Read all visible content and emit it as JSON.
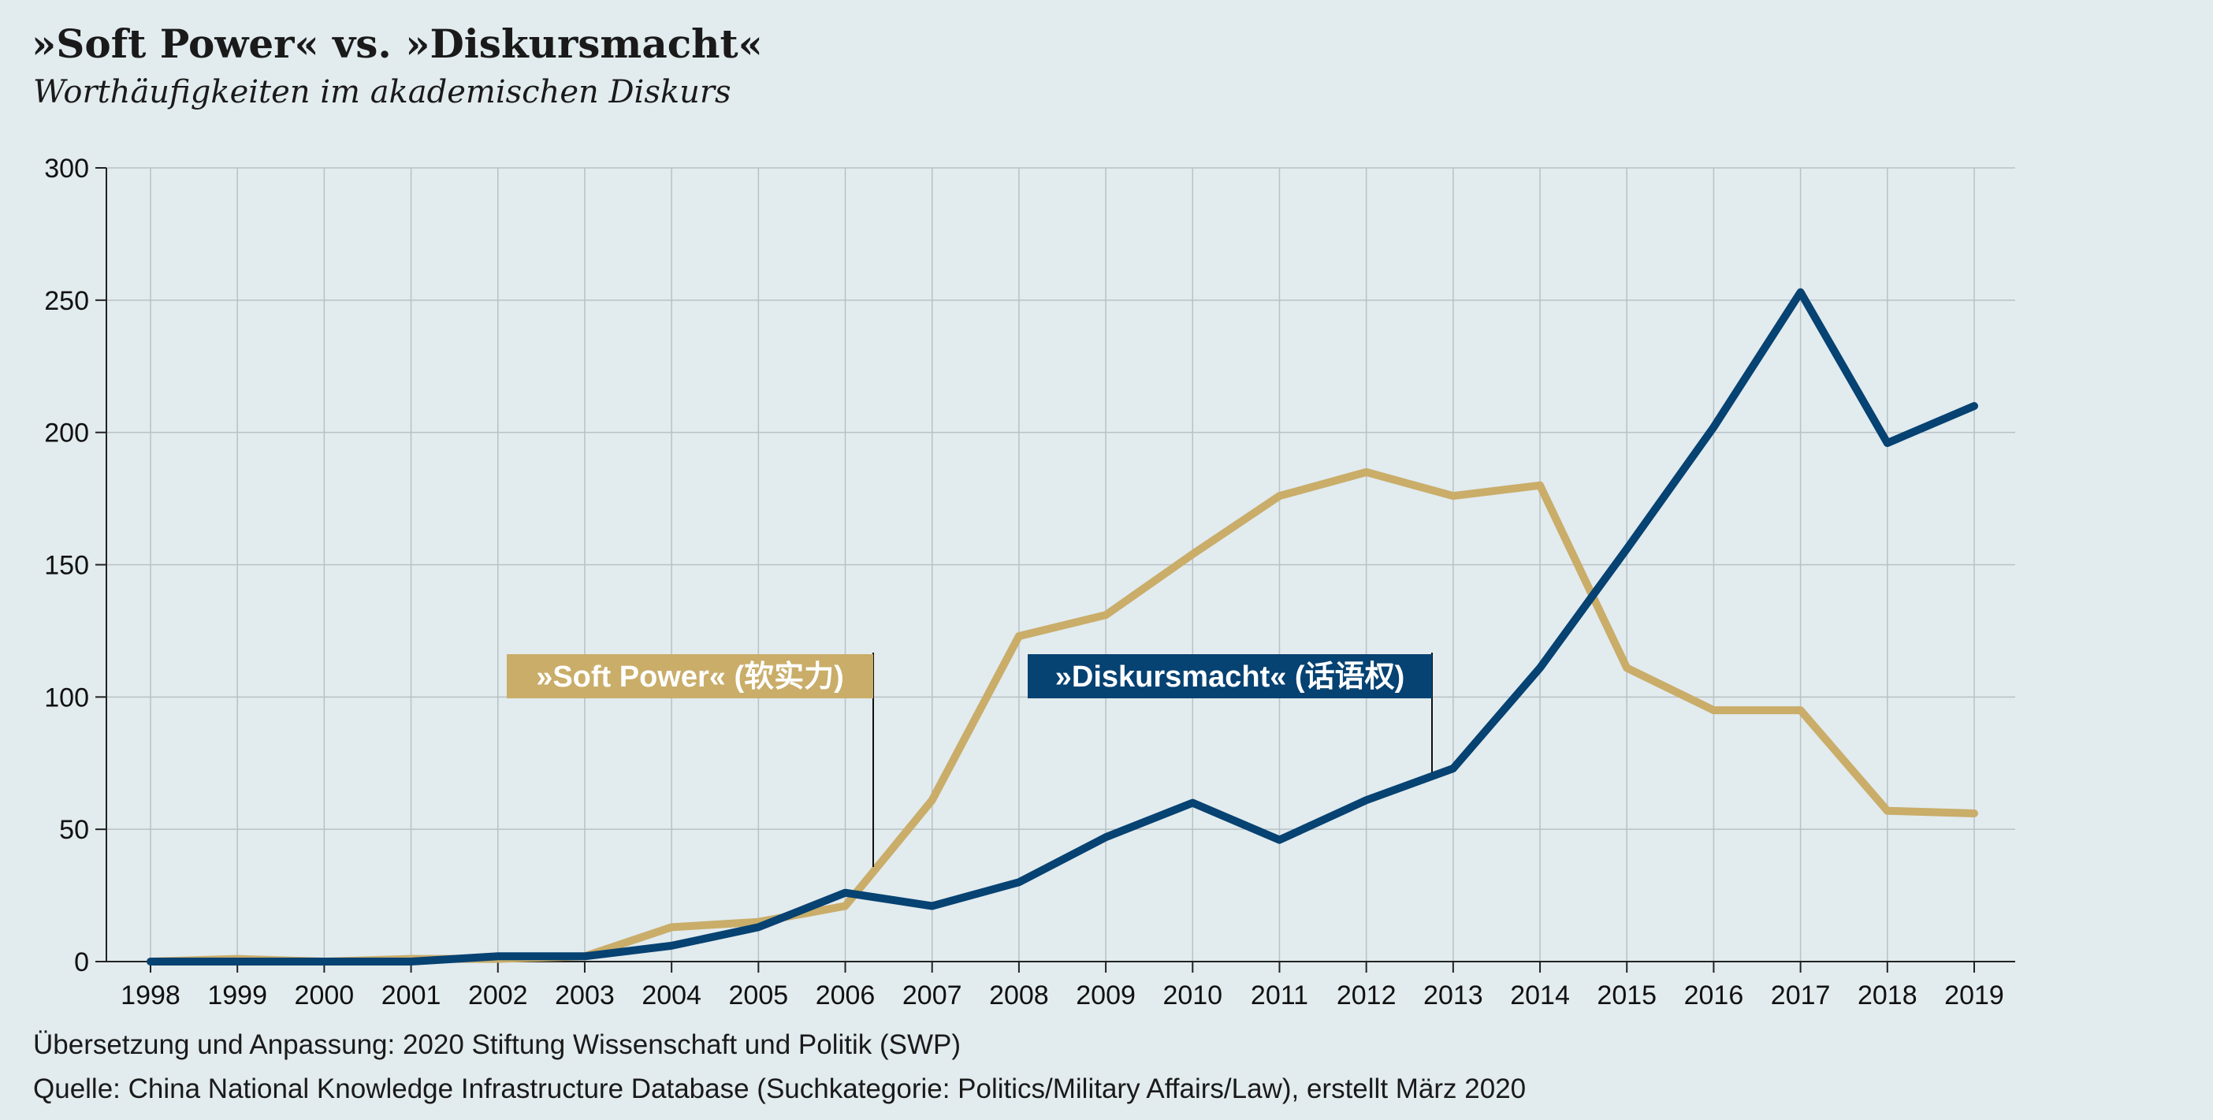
{
  "header": {
    "title": "»Soft Power« vs. »Diskursmacht«",
    "subtitle": "Worthäufigkeiten im akademischen Diskurs"
  },
  "footer": {
    "translation_note": "Übersetzung und Anpassung: 2020 Stiftung Wissenschaft und Politik (SWP)",
    "source_note": "Quelle: China National Knowledge Infrastructure Database (Suchkategorie: Politics/Military Affairs/Law), erstellt März 2020"
  },
  "chart_data": {
    "type": "line",
    "title": "»Soft Power« vs. »Diskursmacht«",
    "subtitle": "Worthäufigkeiten im akademischen Diskurs",
    "xlabel": "",
    "ylabel": "",
    "x": [
      "1998",
      "1999",
      "2000",
      "2001",
      "2002",
      "2003",
      "2004",
      "2005",
      "2006",
      "2007",
      "2008",
      "2009",
      "2010",
      "2011",
      "2012",
      "2013",
      "2014",
      "2015",
      "2016",
      "2017",
      "2018",
      "2019"
    ],
    "ylim": [
      0,
      300
    ],
    "yticks": [
      0,
      50,
      100,
      150,
      200,
      250,
      300
    ],
    "grid": true,
    "legend": "inline labels",
    "series": [
      {
        "name": "»Soft Power« (软实力)",
        "color": "#c9ad69",
        "values": [
          0,
          1,
          0,
          1,
          1,
          2,
          13,
          15,
          21,
          61,
          123,
          131,
          154,
          176,
          185,
          176,
          180,
          111,
          95,
          95,
          57,
          56
        ]
      },
      {
        "name": "»Diskursmacht« (话语权)",
        "color": "#064272",
        "values": [
          0,
          0,
          0,
          0,
          2,
          2,
          6,
          13,
          26,
          21,
          30,
          47,
          60,
          46,
          61,
          73,
          111,
          156,
          202,
          253,
          196,
          210
        ]
      }
    ]
  }
}
